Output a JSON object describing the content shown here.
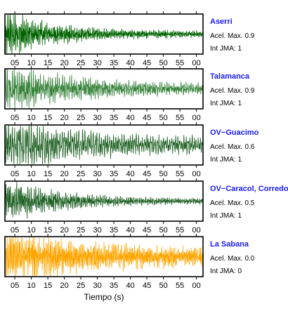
{
  "chart_data": {
    "type": "line",
    "xlabel": "Tiempo (s)",
    "x_tick_labels": [
      "05",
      "10",
      "15",
      "20",
      "25",
      "30",
      "35",
      "40",
      "45",
      "50",
      "55",
      "00"
    ],
    "xlim": [
      2,
      62
    ],
    "panels": [
      {
        "station": "Aserri",
        "info_lines": [
          "Acel. Max. 0.9",
          "Int JMA: 1"
        ],
        "color": "#006400",
        "peak_amplitude": 0.95,
        "decay_rate": 0.075,
        "frequency_hz": 2.6,
        "noise_floor": 0.14
      },
      {
        "station": "Talamanca",
        "info_lines": [
          "Acel. Max. 0.9",
          "Int JMA: 1"
        ],
        "color": "#2e7d32",
        "peak_amplitude": 0.85,
        "decay_rate": 0.045,
        "frequency_hz": 1.9,
        "noise_floor": 0.18
      },
      {
        "station": "OV−Guacimo",
        "info_lines": [
          "Acel. Max. 0.6",
          "Int JMA: 1"
        ],
        "color": "#1b5e20",
        "peak_amplitude": 0.85,
        "decay_rate": 0.035,
        "frequency_hz": 1.6,
        "noise_floor": 0.25
      },
      {
        "station": "OV−Caracol, Corredore",
        "info_lines": [
          "Acel. Max. 0.5",
          "Int JMA: 1"
        ],
        "color": "#1b5e20",
        "peak_amplitude": 0.9,
        "decay_rate": 0.06,
        "frequency_hz": 2.1,
        "noise_floor": 0.1
      },
      {
        "station": "La Sabana",
        "info_lines": [
          "Acel. Max. 0.0",
          "Int JMA: 0"
        ],
        "color": "#ffa500",
        "peak_amplitude": 0.9,
        "decay_rate": 0.03,
        "frequency_hz": 2.8,
        "noise_floor": 0.25
      }
    ]
  }
}
